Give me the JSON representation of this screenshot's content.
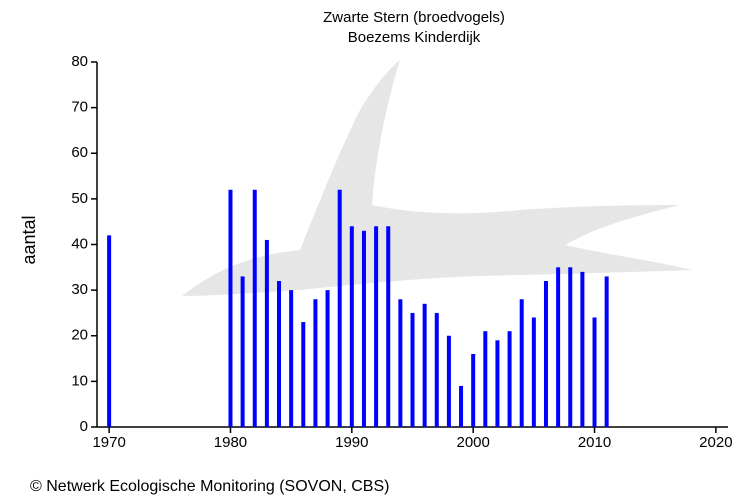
{
  "chart_data": {
    "type": "bar",
    "title": "Zwarte Stern (broedvogels)",
    "subtitle": "Boezems Kinderdijk",
    "y_label": "aantal",
    "footer": "© Netwerk Ecologische Monitoring (SOVON, CBS)",
    "color": "#0000ff",
    "x": [
      1970,
      1980,
      1981,
      1982,
      1983,
      1984,
      1985,
      1986,
      1987,
      1988,
      1989,
      1990,
      1991,
      1992,
      1993,
      1994,
      1995,
      1996,
      1997,
      1998,
      1999,
      2000,
      2001,
      2002,
      2003,
      2004,
      2005,
      2006,
      2007,
      2008,
      2009,
      2010,
      2011
    ],
    "values": [
      42,
      52,
      33,
      52,
      41,
      32,
      30,
      23,
      28,
      30,
      52,
      44,
      43,
      44,
      44,
      28,
      25,
      27,
      25,
      20,
      9,
      16,
      21,
      19,
      21,
      28,
      24,
      32,
      35,
      35,
      34,
      24,
      33
    ],
    "xlim": [
      1969,
      2021
    ],
    "xticks": [
      1970,
      1980,
      1990,
      2000,
      2010,
      2020
    ],
    "ylim": [
      0,
      80
    ],
    "yticks": [
      0,
      10,
      20,
      30,
      40,
      50,
      60,
      70,
      80
    ]
  }
}
